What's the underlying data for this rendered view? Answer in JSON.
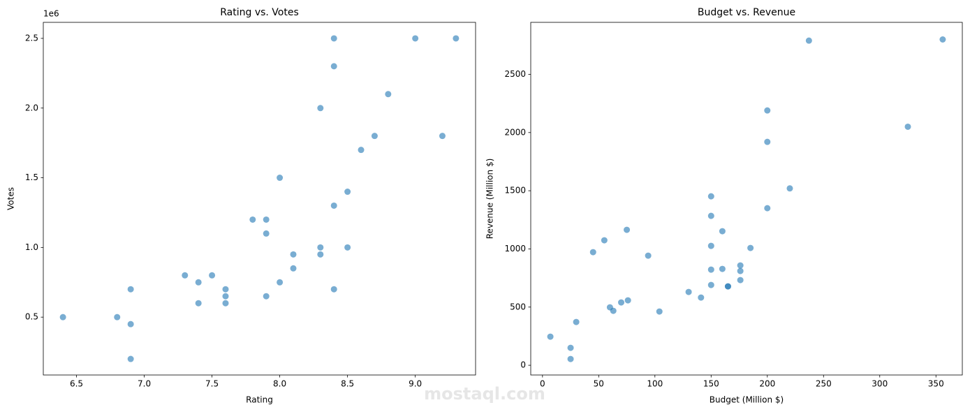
{
  "chart_data": [
    {
      "type": "scatter",
      "title": "Rating vs. Votes",
      "xlabel": "Rating",
      "ylabel": "Votes",
      "offset_text": "1e6",
      "x": [
        6.4,
        6.8,
        6.9,
        6.9,
        6.9,
        7.3,
        7.4,
        7.4,
        7.5,
        7.6,
        7.6,
        7.6,
        7.8,
        7.9,
        7.9,
        7.9,
        8.0,
        8.0,
        8.1,
        8.1,
        8.3,
        8.3,
        8.3,
        8.4,
        8.4,
        8.4,
        8.4,
        8.5,
        8.5,
        8.6,
        8.7,
        8.8,
        9.0,
        9.2,
        9.3
      ],
      "values": [
        500000,
        500000,
        450000,
        700000,
        200000,
        800000,
        750000,
        600000,
        800000,
        700000,
        650000,
        600000,
        1200000,
        1200000,
        1100000,
        650000,
        1500000,
        750000,
        950000,
        850000,
        2000000,
        1000000,
        950000,
        2500000,
        2300000,
        1300000,
        700000,
        1400000,
        1000000,
        1700000,
        1800000,
        2100000,
        2500000,
        1800000,
        2500000
      ],
      "color": "#1f77b4",
      "opacity": 0.6,
      "xlim": [
        6.255,
        9.445
      ],
      "ylim": [
        85000,
        2615000
      ],
      "xticks": [
        6.5,
        {
          "value": 7,
          "label": "7.0"
        },
        7.5,
        {
          "value": 8,
          "label": "8.0"
        },
        8.5,
        {
          "value": 9,
          "label": "9.0"
        }
      ],
      "yticks": [
        {
          "value": 500000,
          "label": "0.5"
        },
        {
          "value": 1000000,
          "label": "1.0"
        },
        {
          "value": 1500000,
          "label": "1.5"
        },
        {
          "value": 2000000,
          "label": "2.0"
        },
        {
          "value": 2500000,
          "label": "2.5"
        }
      ]
    },
    {
      "type": "scatter",
      "title": "Budget vs. Revenue",
      "xlabel": "Budget (Million $)",
      "ylabel": "Revenue (Million $)",
      "x": [
        7,
        25,
        25,
        30,
        45,
        55,
        60,
        63,
        70,
        76,
        75,
        94,
        104,
        130,
        141,
        150,
        150,
        150,
        150,
        150,
        160,
        160,
        165,
        165,
        176,
        176,
        176,
        185,
        200,
        200,
        200,
        220,
        237,
        325,
        356
      ],
      "values": [
        246,
        150,
        54,
        372,
        972,
        1074,
        498,
        468,
        540,
        558,
        1164,
        942,
        462,
        630,
        582,
        1452,
        1284,
        1026,
        822,
        690,
        1152,
        828,
        678,
        678,
        858,
        810,
        732,
        1008,
        2190,
        1920,
        1350,
        1520,
        2790,
        2050,
        2800
      ],
      "color": "#1f77b4",
      "opacity": 0.6,
      "xlim": [
        -10.45,
        373.45
      ],
      "ylim": [
        -83.5,
        2947
      ],
      "xticks": [
        0,
        50,
        100,
        150,
        200,
        250,
        300,
        350
      ],
      "yticks": [
        0,
        500,
        1000,
        1500,
        2000,
        2500
      ]
    }
  ],
  "watermark": "mostaql.com"
}
